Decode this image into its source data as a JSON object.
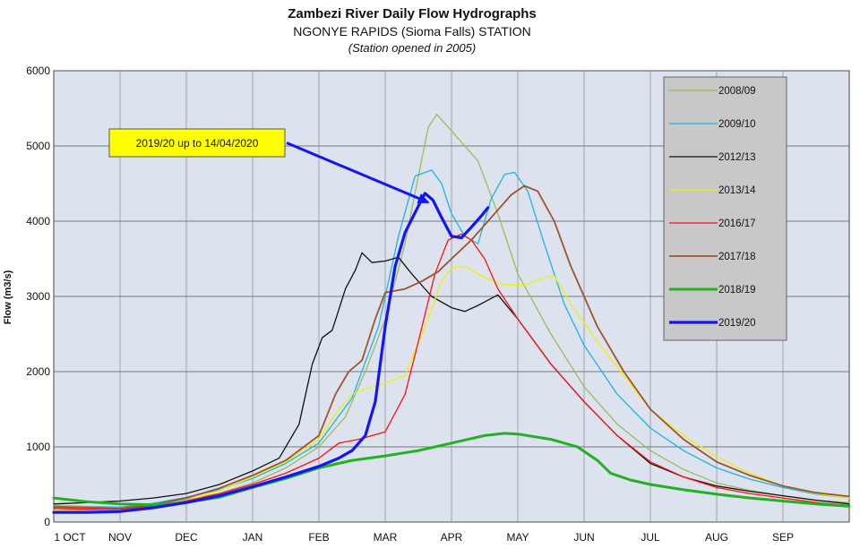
{
  "chart_data": {
    "type": "line",
    "title": "Zambezi River Daily Flow Hydrographs",
    "subtitle": "NGONYE RAPIDS (Sioma Falls) STATION",
    "note": "(Station opened in 2005)",
    "ylabel": "Flow (m3/s)",
    "xlabel": "",
    "ylim": [
      0,
      6000
    ],
    "yticks": [
      0,
      1000,
      2000,
      3000,
      4000,
      5000,
      6000
    ],
    "xlim": [
      0,
      12
    ],
    "month_labels": [
      "1 OCT",
      "NOV",
      "DEC",
      "JAN",
      "FEB",
      "MAR",
      "APR",
      "MAY",
      "JUN",
      "JUL",
      "AUG",
      "SEP"
    ],
    "grid": true,
    "legend_position": "top-right",
    "annotation": {
      "text": "2019/20 up to 14/04/2020",
      "target": [
        5.7,
        4370
      ]
    },
    "series": [
      {
        "name": "2008/09",
        "color": "#9bbb59",
        "width": 1.3,
        "points": [
          [
            0,
            220
          ],
          [
            0.5,
            210
          ],
          [
            1,
            200
          ],
          [
            1.5,
            230
          ],
          [
            2,
            300
          ],
          [
            2.5,
            380
          ],
          [
            3,
            520
          ],
          [
            3.5,
            720
          ],
          [
            4,
            1000
          ],
          [
            4.4,
            1400
          ],
          [
            4.7,
            2000
          ],
          [
            5,
            2700
          ],
          [
            5.3,
            3700
          ],
          [
            5.5,
            4600
          ],
          [
            5.65,
            5250
          ],
          [
            5.78,
            5420
          ],
          [
            5.9,
            5300
          ],
          [
            6.1,
            5100
          ],
          [
            6.4,
            4800
          ],
          [
            6.7,
            4100
          ],
          [
            7,
            3300
          ],
          [
            7.5,
            2500
          ],
          [
            8,
            1800
          ],
          [
            8.5,
            1300
          ],
          [
            9,
            950
          ],
          [
            9.5,
            700
          ],
          [
            10,
            520
          ],
          [
            10.5,
            420
          ],
          [
            11,
            350
          ],
          [
            11.5,
            290
          ],
          [
            12,
            260
          ]
        ]
      },
      {
        "name": "2009/10",
        "color": "#1fb3e5",
        "width": 1.3,
        "points": [
          [
            0,
            210
          ],
          [
            0.5,
            200
          ],
          [
            1,
            195
          ],
          [
            1.5,
            250
          ],
          [
            2,
            330
          ],
          [
            2.5,
            430
          ],
          [
            3,
            580
          ],
          [
            3.5,
            780
          ],
          [
            4,
            1050
          ],
          [
            4.5,
            1650
          ],
          [
            4.9,
            2600
          ],
          [
            5.2,
            3800
          ],
          [
            5.45,
            4600
          ],
          [
            5.7,
            4680
          ],
          [
            5.85,
            4500
          ],
          [
            6,
            4100
          ],
          [
            6.2,
            3800
          ],
          [
            6.4,
            3700
          ],
          [
            6.6,
            4300
          ],
          [
            6.8,
            4620
          ],
          [
            6.95,
            4650
          ],
          [
            7.15,
            4400
          ],
          [
            7.4,
            3700
          ],
          [
            7.7,
            2900
          ],
          [
            8,
            2350
          ],
          [
            8.5,
            1700
          ],
          [
            9,
            1250
          ],
          [
            9.5,
            950
          ],
          [
            10,
            720
          ],
          [
            10.5,
            570
          ],
          [
            11,
            460
          ],
          [
            11.5,
            370
          ],
          [
            12,
            320
          ]
        ]
      },
      {
        "name": "2012/13",
        "color": "#111111",
        "width": 1.3,
        "points": [
          [
            0,
            240
          ],
          [
            0.5,
            260
          ],
          [
            1,
            280
          ],
          [
            1.5,
            320
          ],
          [
            2,
            380
          ],
          [
            2.5,
            500
          ],
          [
            3,
            680
          ],
          [
            3.4,
            850
          ],
          [
            3.7,
            1300
          ],
          [
            3.9,
            2100
          ],
          [
            4.05,
            2450
          ],
          [
            4.2,
            2550
          ],
          [
            4.4,
            3100
          ],
          [
            4.55,
            3350
          ],
          [
            4.65,
            3580
          ],
          [
            4.8,
            3450
          ],
          [
            5,
            3470
          ],
          [
            5.2,
            3520
          ],
          [
            5.4,
            3300
          ],
          [
            5.7,
            3000
          ],
          [
            6,
            2850
          ],
          [
            6.2,
            2800
          ],
          [
            6.4,
            2880
          ],
          [
            6.7,
            3020
          ],
          [
            7,
            2700
          ],
          [
            7.5,
            2100
          ],
          [
            8,
            1600
          ],
          [
            8.5,
            1150
          ],
          [
            9,
            780
          ],
          [
            9.5,
            600
          ],
          [
            10,
            480
          ],
          [
            10.5,
            410
          ],
          [
            11,
            350
          ],
          [
            11.5,
            290
          ],
          [
            12,
            240
          ]
        ]
      },
      {
        "name": "2013/14",
        "color": "#f0f000",
        "width": 1.3,
        "points": [
          [
            0,
            150
          ],
          [
            0.5,
            160
          ],
          [
            1,
            170
          ],
          [
            1.5,
            200
          ],
          [
            2,
            280
          ],
          [
            2.5,
            420
          ],
          [
            3,
            600
          ],
          [
            3.5,
            800
          ],
          [
            4,
            1100
          ],
          [
            4.3,
            1500
          ],
          [
            4.5,
            1700
          ],
          [
            4.8,
            1800
          ],
          [
            5,
            1850
          ],
          [
            5.3,
            1950
          ],
          [
            5.6,
            2600
          ],
          [
            5.85,
            3200
          ],
          [
            6,
            3380
          ],
          [
            6.2,
            3400
          ],
          [
            6.5,
            3250
          ],
          [
            6.8,
            3150
          ],
          [
            7.1,
            3150
          ],
          [
            7.4,
            3250
          ],
          [
            7.55,
            3270
          ],
          [
            7.8,
            2900
          ],
          [
            8.2,
            2400
          ],
          [
            8.6,
            1950
          ],
          [
            9,
            1500
          ],
          [
            9.5,
            1150
          ],
          [
            10,
            870
          ],
          [
            10.5,
            650
          ],
          [
            11,
            480
          ],
          [
            11.5,
            380
          ],
          [
            12,
            320
          ]
        ]
      },
      {
        "name": "2016/17",
        "color": "#ff1010",
        "width": 1.3,
        "points": [
          [
            0,
            180
          ],
          [
            0.5,
            170
          ],
          [
            1,
            170
          ],
          [
            1.5,
            210
          ],
          [
            2,
            280
          ],
          [
            2.5,
            380
          ],
          [
            3,
            500
          ],
          [
            3.5,
            650
          ],
          [
            4,
            850
          ],
          [
            4.3,
            1050
          ],
          [
            4.6,
            1100
          ],
          [
            5,
            1200
          ],
          [
            5.3,
            1700
          ],
          [
            5.5,
            2400
          ],
          [
            5.75,
            3300
          ],
          [
            5.95,
            3750
          ],
          [
            6.15,
            3830
          ],
          [
            6.3,
            3750
          ],
          [
            6.5,
            3500
          ],
          [
            6.7,
            3100
          ],
          [
            7,
            2700
          ],
          [
            7.5,
            2100
          ],
          [
            8,
            1600
          ],
          [
            8.5,
            1150
          ],
          [
            9,
            800
          ],
          [
            9.5,
            600
          ],
          [
            10,
            460
          ],
          [
            10.5,
            380
          ],
          [
            11,
            320
          ],
          [
            11.5,
            260
          ],
          [
            12,
            220
          ]
        ]
      },
      {
        "name": "2017/18",
        "color": "#a0522d",
        "width": 1.8,
        "points": [
          [
            0,
            200
          ],
          [
            0.5,
            190
          ],
          [
            1,
            180
          ],
          [
            1.5,
            230
          ],
          [
            2,
            320
          ],
          [
            2.5,
            450
          ],
          [
            3,
            620
          ],
          [
            3.5,
            820
          ],
          [
            4,
            1150
          ],
          [
            4.25,
            1700
          ],
          [
            4.45,
            2000
          ],
          [
            4.65,
            2150
          ],
          [
            4.85,
            2700
          ],
          [
            5,
            3050
          ],
          [
            5.3,
            3100
          ],
          [
            5.55,
            3200
          ],
          [
            5.8,
            3330
          ],
          [
            6,
            3500
          ],
          [
            6.3,
            3750
          ],
          [
            6.6,
            4050
          ],
          [
            6.9,
            4350
          ],
          [
            7.1,
            4470
          ],
          [
            7.3,
            4400
          ],
          [
            7.55,
            4000
          ],
          [
            7.8,
            3400
          ],
          [
            8.2,
            2600
          ],
          [
            8.6,
            2000
          ],
          [
            9,
            1500
          ],
          [
            9.5,
            1100
          ],
          [
            10,
            800
          ],
          [
            10.5,
            620
          ],
          [
            11,
            480
          ],
          [
            11.5,
            390
          ],
          [
            12,
            340
          ]
        ]
      },
      {
        "name": "2018/19",
        "color": "#22b122",
        "width": 3.0,
        "points": [
          [
            0,
            320
          ],
          [
            0.5,
            270
          ],
          [
            1,
            240
          ],
          [
            1.5,
            230
          ],
          [
            2,
            260
          ],
          [
            2.5,
            330
          ],
          [
            3,
            460
          ],
          [
            3.5,
            580
          ],
          [
            4,
            720
          ],
          [
            4.5,
            820
          ],
          [
            5,
            880
          ],
          [
            5.5,
            950
          ],
          [
            6,
            1050
          ],
          [
            6.5,
            1150
          ],
          [
            6.8,
            1180
          ],
          [
            7,
            1170
          ],
          [
            7.5,
            1100
          ],
          [
            7.9,
            1000
          ],
          [
            8.2,
            820
          ],
          [
            8.4,
            650
          ],
          [
            8.7,
            560
          ],
          [
            9,
            500
          ],
          [
            9.5,
            430
          ],
          [
            10,
            370
          ],
          [
            10.5,
            320
          ],
          [
            11,
            280
          ],
          [
            11.5,
            240
          ],
          [
            12,
            210
          ]
        ]
      },
      {
        "name": "2019/20",
        "color": "#1414f5",
        "width": 3.2,
        "points": [
          [
            0,
            130
          ],
          [
            0.5,
            130
          ],
          [
            1,
            140
          ],
          [
            1.5,
            190
          ],
          [
            2,
            260
          ],
          [
            2.5,
            350
          ],
          [
            3,
            470
          ],
          [
            3.5,
            600
          ],
          [
            4,
            740
          ],
          [
            4.3,
            850
          ],
          [
            4.5,
            950
          ],
          [
            4.7,
            1150
          ],
          [
            4.85,
            1600
          ],
          [
            5,
            2600
          ],
          [
            5.15,
            3400
          ],
          [
            5.3,
            3850
          ],
          [
            5.5,
            4200
          ],
          [
            5.6,
            4370
          ],
          [
            5.72,
            4280
          ],
          [
            5.85,
            4050
          ],
          [
            6,
            3800
          ],
          [
            6.15,
            3780
          ],
          [
            6.3,
            3920
          ],
          [
            6.45,
            4070
          ],
          [
            6.55,
            4180
          ]
        ]
      }
    ]
  }
}
